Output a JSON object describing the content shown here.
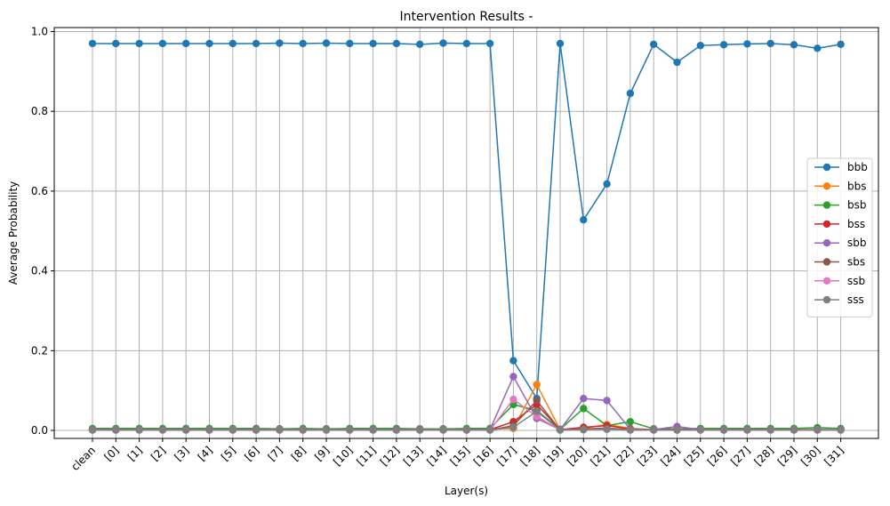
{
  "chart_data": {
    "type": "line",
    "title": "Intervention Results -",
    "xlabel": "Layer(s)",
    "ylabel": "Average Probability",
    "ylim": [
      -0.02,
      1.01
    ],
    "yticks": [
      0.0,
      0.2,
      0.4,
      0.6,
      0.8,
      1.0
    ],
    "ytick_labels": [
      "0.0",
      "0.2",
      "0.4",
      "0.6",
      "0.8",
      "1.0"
    ],
    "grid": true,
    "legend_position": "center-right",
    "categories": [
      "clean",
      "[0]",
      "[1]",
      "[2]",
      "[3]",
      "[4]",
      "[5]",
      "[6]",
      "[7]",
      "[8]",
      "[9]",
      "[10]",
      "[11]",
      "[12]",
      "[13]",
      "[14]",
      "[15]",
      "[16]",
      "[17]",
      "[18]",
      "[19]",
      "[20]",
      "[21]",
      "[22]",
      "[23]",
      "[24]",
      "[25]",
      "[26]",
      "[27]",
      "[28]",
      "[29]",
      "[30]",
      "[31]"
    ],
    "series": [
      {
        "name": "bbb",
        "color": "#1f77b4",
        "values": [
          0.97,
          0.97,
          0.97,
          0.97,
          0.97,
          0.97,
          0.97,
          0.97,
          0.971,
          0.97,
          0.971,
          0.97,
          0.97,
          0.97,
          0.968,
          0.971,
          0.97,
          0.97,
          0.175,
          0.08,
          0.97,
          0.528,
          0.618,
          0.845,
          0.968,
          0.923,
          0.965,
          0.967,
          0.969,
          0.97,
          0.967,
          0.958,
          0.968
        ]
      },
      {
        "name": "bbs",
        "color": "#ff7f0e",
        "values": [
          0.003,
          0.003,
          0.003,
          0.003,
          0.003,
          0.003,
          0.003,
          0.003,
          0.003,
          0.003,
          0.003,
          0.003,
          0.003,
          0.003,
          0.003,
          0.003,
          0.003,
          0.003,
          0.005,
          0.115,
          0.002,
          0.005,
          0.015,
          0.005,
          0.002,
          0.002,
          0.002,
          0.002,
          0.002,
          0.002,
          0.002,
          0.002,
          0.002
        ]
      },
      {
        "name": "bsb",
        "color": "#2ca02c",
        "values": [
          0.005,
          0.005,
          0.005,
          0.005,
          0.005,
          0.005,
          0.005,
          0.005,
          0.004,
          0.005,
          0.004,
          0.005,
          0.005,
          0.005,
          0.004,
          0.004,
          0.005,
          0.005,
          0.065,
          0.05,
          0.003,
          0.055,
          0.012,
          0.022,
          0.004,
          0.004,
          0.005,
          0.005,
          0.005,
          0.005,
          0.005,
          0.007,
          0.005
        ]
      },
      {
        "name": "bss",
        "color": "#d62728",
        "values": [
          0.002,
          0.002,
          0.002,
          0.002,
          0.002,
          0.002,
          0.002,
          0.002,
          0.002,
          0.002,
          0.002,
          0.002,
          0.002,
          0.002,
          0.002,
          0.002,
          0.002,
          0.002,
          0.022,
          0.065,
          0.002,
          0.008,
          0.012,
          0.004,
          0.002,
          0.002,
          0.002,
          0.002,
          0.002,
          0.002,
          0.002,
          0.002,
          0.002
        ]
      },
      {
        "name": "sbb",
        "color": "#9467bd",
        "values": [
          0.002,
          0.002,
          0.002,
          0.002,
          0.002,
          0.002,
          0.002,
          0.002,
          0.002,
          0.002,
          0.002,
          0.002,
          0.002,
          0.002,
          0.002,
          0.002,
          0.002,
          0.002,
          0.135,
          0.03,
          0.002,
          0.08,
          0.075,
          0.003,
          0.002,
          0.01,
          0.002,
          0.002,
          0.002,
          0.002,
          0.002,
          0.002,
          0.002
        ]
      },
      {
        "name": "sbs",
        "color": "#8c564b",
        "values": [
          0.001,
          0.001,
          0.001,
          0.001,
          0.001,
          0.001,
          0.001,
          0.001,
          0.001,
          0.001,
          0.001,
          0.001,
          0.001,
          0.001,
          0.001,
          0.001,
          0.001,
          0.001,
          0.012,
          0.075,
          0.001,
          0.004,
          0.006,
          0.002,
          0.001,
          0.001,
          0.001,
          0.001,
          0.001,
          0.001,
          0.001,
          0.001,
          0.001
        ]
      },
      {
        "name": "ssb",
        "color": "#e377c2",
        "values": [
          0.001,
          0.001,
          0.001,
          0.001,
          0.001,
          0.001,
          0.001,
          0.001,
          0.001,
          0.001,
          0.001,
          0.001,
          0.001,
          0.001,
          0.001,
          0.001,
          0.001,
          0.001,
          0.078,
          0.035,
          0.001,
          0.002,
          0.003,
          0.001,
          0.001,
          0.001,
          0.001,
          0.001,
          0.001,
          0.001,
          0.001,
          0.001,
          0.001
        ]
      },
      {
        "name": "sss",
        "color": "#7f7f7f",
        "values": [
          0.001,
          0.001,
          0.001,
          0.001,
          0.001,
          0.001,
          0.001,
          0.001,
          0.001,
          0.001,
          0.001,
          0.001,
          0.001,
          0.001,
          0.001,
          0.001,
          0.001,
          0.001,
          0.008,
          0.048,
          0.001,
          0.002,
          0.003,
          0.001,
          0.001,
          0.001,
          0.001,
          0.001,
          0.001,
          0.001,
          0.001,
          0.001,
          0.001
        ]
      }
    ]
  }
}
